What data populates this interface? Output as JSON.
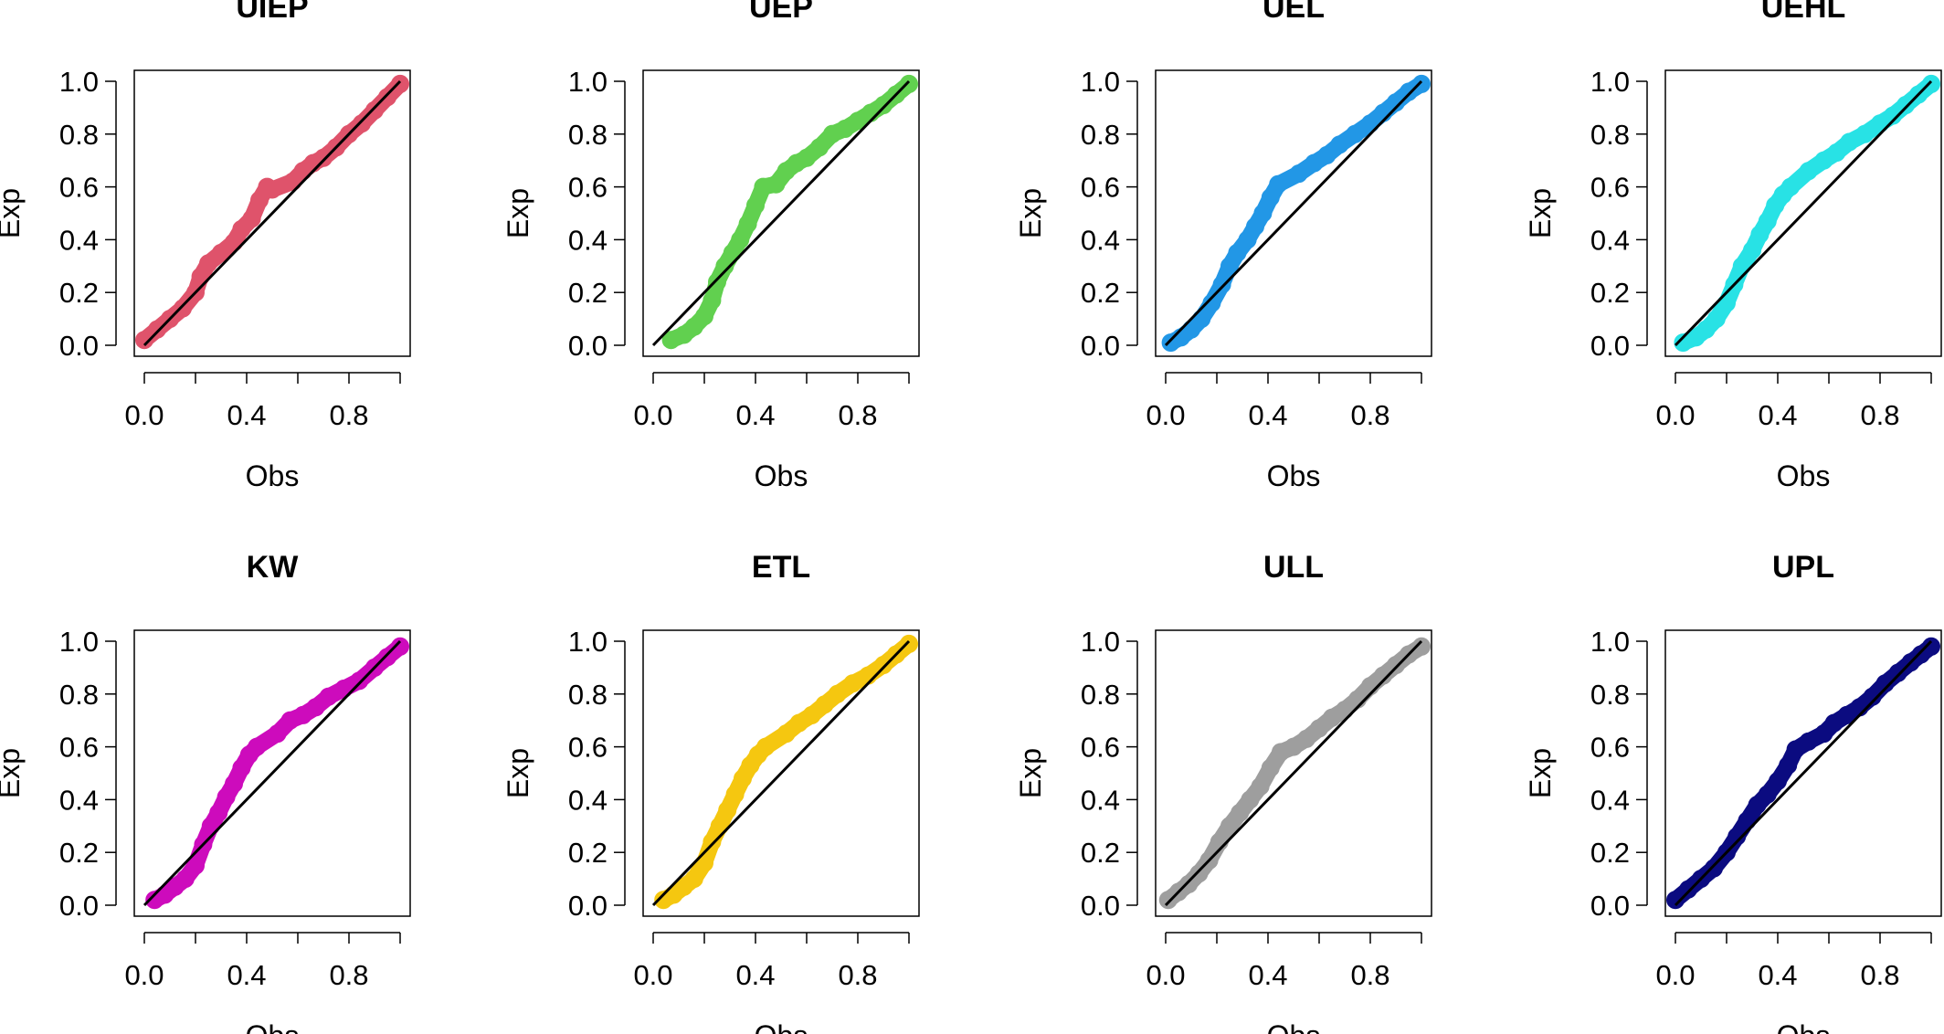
{
  "chart_data": [
    {
      "type": "scatter",
      "title": "UIEP",
      "xlabel": "Obs",
      "ylabel": "Exp",
      "xlim": [
        0,
        1
      ],
      "ylim": [
        0,
        1
      ],
      "x_ticks": [
        "0.0",
        "0.4",
        "0.8"
      ],
      "y_ticks": [
        "0.0",
        "0.2",
        "0.4",
        "0.6",
        "0.8",
        "1.0"
      ],
      "grid": false,
      "color": "#DF536B",
      "reference_line": [
        [
          0,
          0
        ],
        [
          1,
          1
        ]
      ],
      "series": [
        {
          "x": [
            0.0,
            0.05,
            0.1,
            0.15,
            0.2,
            0.22,
            0.25,
            0.3,
            0.35,
            0.38,
            0.42,
            0.45,
            0.48,
            0.5,
            0.58,
            0.62,
            0.66,
            0.7,
            0.75,
            0.8,
            0.85,
            0.9,
            0.95,
            1.0
          ],
          "y": [
            0.02,
            0.06,
            0.1,
            0.14,
            0.2,
            0.26,
            0.31,
            0.35,
            0.39,
            0.44,
            0.48,
            0.55,
            0.6,
            0.59,
            0.62,
            0.66,
            0.69,
            0.71,
            0.75,
            0.8,
            0.84,
            0.89,
            0.94,
            0.99
          ]
        }
      ]
    },
    {
      "type": "scatter",
      "title": "UEP",
      "xlabel": "Obs",
      "ylabel": "Exp",
      "xlim": [
        0,
        1
      ],
      "ylim": [
        0,
        1
      ],
      "x_ticks": [
        "0.0",
        "0.4",
        "0.8"
      ],
      "y_ticks": [
        "0.0",
        "0.2",
        "0.4",
        "0.6",
        "0.8",
        "1.0"
      ],
      "grid": false,
      "color": "#61D04F",
      "reference_line": [
        [
          0,
          0
        ],
        [
          1,
          1
        ]
      ],
      "series": [
        {
          "x": [
            0.07,
            0.12,
            0.16,
            0.2,
            0.23,
            0.25,
            0.28,
            0.31,
            0.34,
            0.37,
            0.4,
            0.43,
            0.48,
            0.52,
            0.56,
            0.6,
            0.65,
            0.7,
            0.75,
            0.8,
            0.85,
            0.9,
            0.95,
            1.0
          ],
          "y": [
            0.02,
            0.04,
            0.07,
            0.11,
            0.17,
            0.24,
            0.3,
            0.35,
            0.4,
            0.46,
            0.53,
            0.6,
            0.61,
            0.66,
            0.69,
            0.71,
            0.75,
            0.8,
            0.82,
            0.85,
            0.88,
            0.91,
            0.95,
            0.99
          ]
        }
      ]
    },
    {
      "type": "scatter",
      "title": "UEL",
      "xlabel": "Obs",
      "ylabel": "Exp",
      "xlim": [
        0,
        1
      ],
      "ylim": [
        0,
        1
      ],
      "x_ticks": [
        "0.0",
        "0.4",
        "0.8"
      ],
      "y_ticks": [
        "0.0",
        "0.2",
        "0.4",
        "0.6",
        "0.8",
        "1.0"
      ],
      "grid": false,
      "color": "#2297E6",
      "reference_line": [
        [
          0,
          0
        ],
        [
          1,
          1
        ]
      ],
      "series": [
        {
          "x": [
            0.02,
            0.06,
            0.1,
            0.14,
            0.18,
            0.22,
            0.25,
            0.28,
            0.32,
            0.35,
            0.38,
            0.41,
            0.44,
            0.52,
            0.58,
            0.63,
            0.68,
            0.74,
            0.8,
            0.85,
            0.9,
            0.95,
            1.0
          ],
          "y": [
            0.01,
            0.03,
            0.06,
            0.1,
            0.16,
            0.23,
            0.3,
            0.35,
            0.4,
            0.45,
            0.5,
            0.56,
            0.61,
            0.65,
            0.69,
            0.72,
            0.76,
            0.8,
            0.84,
            0.88,
            0.92,
            0.96,
            0.99
          ]
        }
      ]
    },
    {
      "type": "scatter",
      "title": "UEHL",
      "xlabel": "Obs",
      "ylabel": "Exp",
      "xlim": [
        0,
        1
      ],
      "ylim": [
        0,
        1
      ],
      "x_ticks": [
        "0.0",
        "0.4",
        "0.8"
      ],
      "y_ticks": [
        "0.0",
        "0.2",
        "0.4",
        "0.6",
        "0.8",
        "1.0"
      ],
      "grid": false,
      "color": "#28E2E5",
      "reference_line": [
        [
          0,
          0
        ],
        [
          1,
          1
        ]
      ],
      "series": [
        {
          "x": [
            0.03,
            0.08,
            0.12,
            0.16,
            0.2,
            0.23,
            0.26,
            0.3,
            0.33,
            0.36,
            0.39,
            0.42,
            0.45,
            0.52,
            0.58,
            0.63,
            0.68,
            0.74,
            0.8,
            0.85,
            0.9,
            0.95,
            1.0
          ],
          "y": [
            0.01,
            0.03,
            0.06,
            0.1,
            0.16,
            0.23,
            0.3,
            0.36,
            0.42,
            0.47,
            0.53,
            0.57,
            0.6,
            0.66,
            0.7,
            0.73,
            0.77,
            0.8,
            0.84,
            0.87,
            0.91,
            0.95,
            0.99
          ]
        }
      ]
    },
    {
      "type": "scatter",
      "title": "KW",
      "xlabel": "Obs",
      "ylabel": "Exp",
      "xlim": [
        0,
        1
      ],
      "ylim": [
        0,
        1
      ],
      "x_ticks": [
        "0.0",
        "0.4",
        "0.8"
      ],
      "y_ticks": [
        "0.0",
        "0.2",
        "0.4",
        "0.6",
        "0.8",
        "1.0"
      ],
      "grid": false,
      "color": "#CD0BBC",
      "reference_line": [
        [
          0,
          0
        ],
        [
          1,
          1
        ]
      ],
      "series": [
        {
          "x": [
            0.04,
            0.08,
            0.12,
            0.16,
            0.2,
            0.23,
            0.26,
            0.29,
            0.32,
            0.35,
            0.38,
            0.41,
            0.44,
            0.52,
            0.57,
            0.62,
            0.67,
            0.72,
            0.78,
            0.84,
            0.9,
            0.95,
            1.0
          ],
          "y": [
            0.02,
            0.04,
            0.07,
            0.1,
            0.15,
            0.23,
            0.3,
            0.35,
            0.41,
            0.46,
            0.52,
            0.57,
            0.6,
            0.65,
            0.7,
            0.72,
            0.75,
            0.79,
            0.82,
            0.85,
            0.9,
            0.94,
            0.98
          ]
        }
      ]
    },
    {
      "type": "scatter",
      "title": "ETL",
      "xlabel": "Obs",
      "ylabel": "Exp",
      "xlim": [
        0,
        1
      ],
      "ylim": [
        0,
        1
      ],
      "x_ticks": [
        "0.0",
        "0.4",
        "0.8"
      ],
      "y_ticks": [
        "0.0",
        "0.2",
        "0.4",
        "0.6",
        "0.8",
        "1.0"
      ],
      "grid": false,
      "color": "#F5C710",
      "reference_line": [
        [
          0,
          0
        ],
        [
          1,
          1
        ]
      ],
      "series": [
        {
          "x": [
            0.04,
            0.08,
            0.12,
            0.16,
            0.2,
            0.23,
            0.26,
            0.29,
            0.32,
            0.35,
            0.38,
            0.41,
            0.44,
            0.52,
            0.57,
            0.62,
            0.67,
            0.72,
            0.78,
            0.84,
            0.9,
            0.95,
            1.0
          ],
          "y": [
            0.02,
            0.04,
            0.07,
            0.1,
            0.16,
            0.24,
            0.3,
            0.36,
            0.42,
            0.48,
            0.53,
            0.57,
            0.6,
            0.65,
            0.69,
            0.72,
            0.76,
            0.8,
            0.84,
            0.87,
            0.91,
            0.95,
            0.99
          ]
        }
      ]
    },
    {
      "type": "scatter",
      "title": "ULL",
      "xlabel": "Obs",
      "ylabel": "Exp",
      "xlim": [
        0,
        1
      ],
      "ylim": [
        0,
        1
      ],
      "x_ticks": [
        "0.0",
        "0.4",
        "0.8"
      ],
      "y_ticks": [
        "0.0",
        "0.2",
        "0.4",
        "0.6",
        "0.8",
        "1.0"
      ],
      "grid": false,
      "color": "#9E9E9E",
      "reference_line": [
        [
          0,
          0
        ],
        [
          1,
          1
        ]
      ],
      "series": [
        {
          "x": [
            0.01,
            0.05,
            0.09,
            0.13,
            0.17,
            0.21,
            0.25,
            0.29,
            0.33,
            0.37,
            0.41,
            0.45,
            0.5,
            0.55,
            0.6,
            0.65,
            0.7,
            0.75,
            0.8,
            0.85,
            0.9,
            0.95,
            1.0
          ],
          "y": [
            0.02,
            0.05,
            0.08,
            0.12,
            0.17,
            0.24,
            0.3,
            0.35,
            0.4,
            0.45,
            0.52,
            0.58,
            0.6,
            0.63,
            0.67,
            0.71,
            0.74,
            0.78,
            0.83,
            0.87,
            0.91,
            0.95,
            0.98
          ]
        }
      ]
    },
    {
      "type": "scatter",
      "title": "UPL",
      "xlabel": "Obs",
      "ylabel": "Exp",
      "xlim": [
        0,
        1
      ],
      "ylim": [
        0,
        1
      ],
      "x_ticks": [
        "0.0",
        "0.4",
        "0.8"
      ],
      "y_ticks": [
        "0.0",
        "0.2",
        "0.4",
        "0.6",
        "0.8",
        "1.0"
      ],
      "grid": false,
      "color": "#0B0B80",
      "reference_line": [
        [
          0,
          0
        ],
        [
          1,
          1
        ]
      ],
      "series": [
        {
          "x": [
            0.0,
            0.05,
            0.1,
            0.15,
            0.2,
            0.24,
            0.28,
            0.32,
            0.36,
            0.4,
            0.44,
            0.47,
            0.52,
            0.58,
            0.62,
            0.67,
            0.72,
            0.77,
            0.82,
            0.87,
            0.92,
            0.96,
            1.0
          ],
          "y": [
            0.02,
            0.06,
            0.1,
            0.14,
            0.2,
            0.26,
            0.32,
            0.38,
            0.42,
            0.47,
            0.53,
            0.59,
            0.62,
            0.65,
            0.69,
            0.72,
            0.75,
            0.79,
            0.84,
            0.88,
            0.92,
            0.95,
            0.98
          ]
        }
      ]
    }
  ]
}
